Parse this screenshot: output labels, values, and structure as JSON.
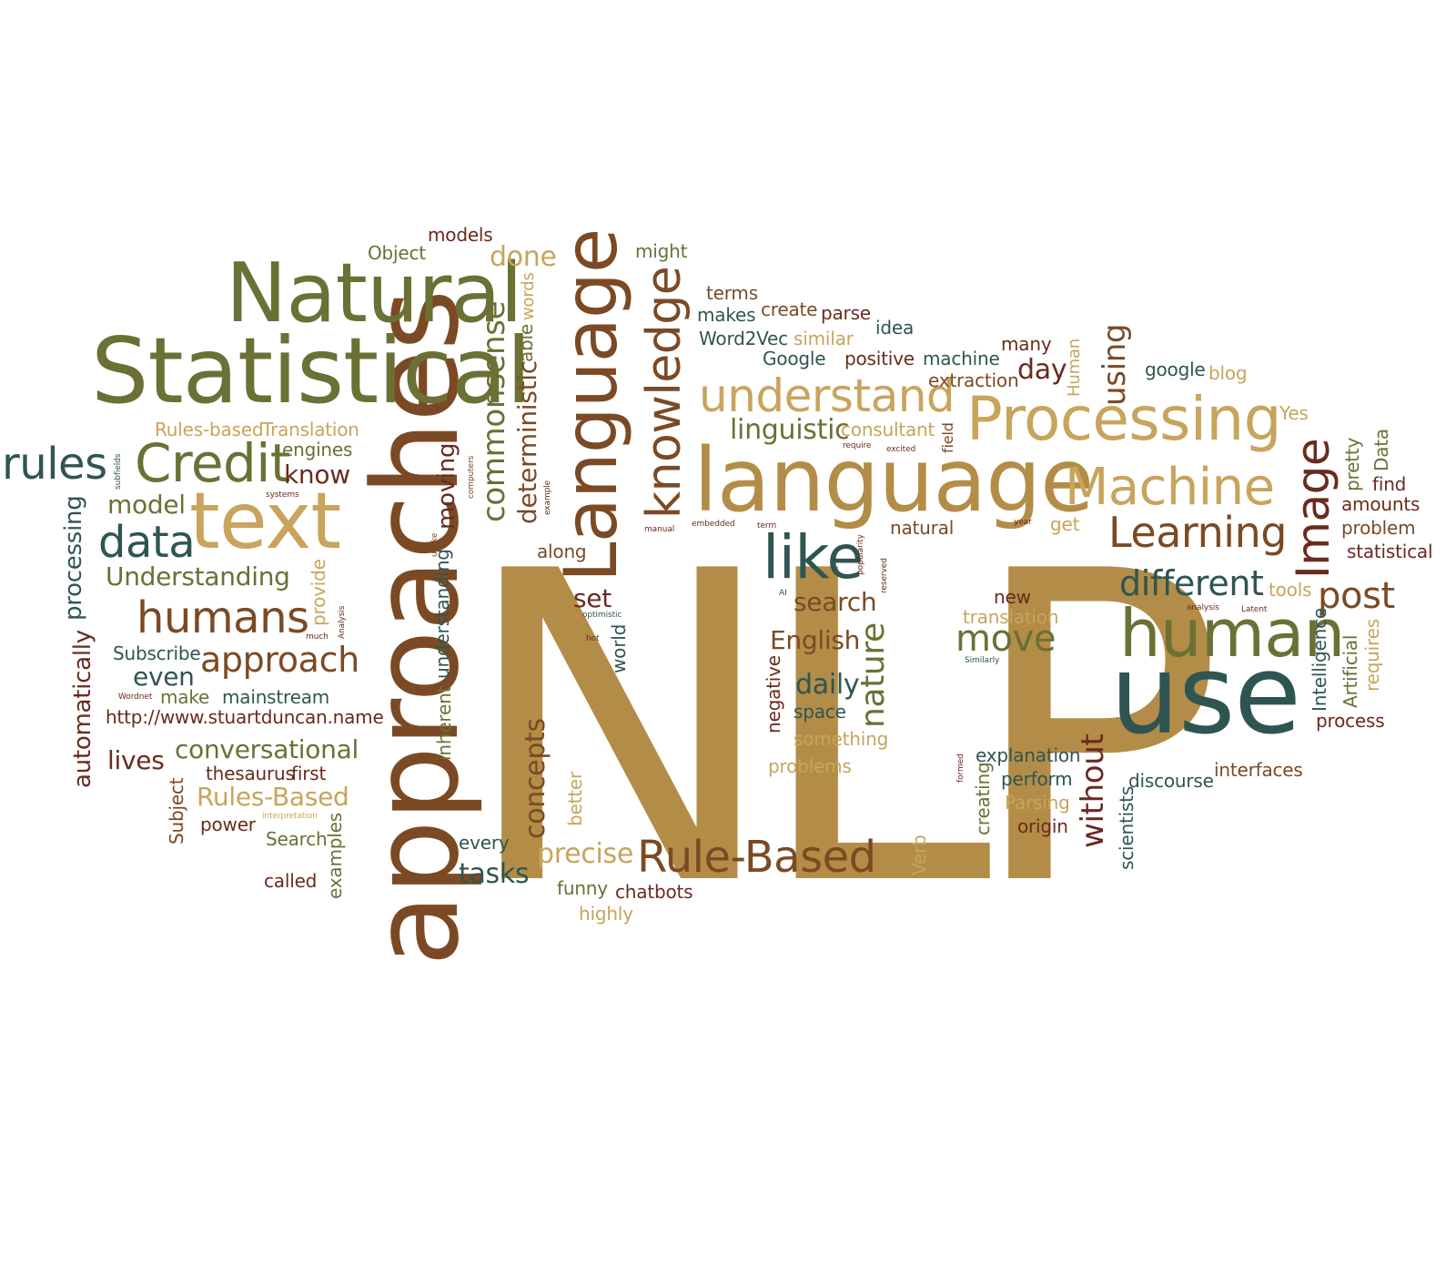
{
  "palette": {
    "gold": "#b38d47",
    "olive": "#6b7035",
    "brown": "#7b4a24",
    "maroon": "#6a2a1e",
    "teal": "#2f5552",
    "sand": "#c8a45c"
  },
  "words": [
    {
      "text": "NLP",
      "size": 470,
      "color": "gold"
    },
    {
      "text": "approaches",
      "size": 130,
      "color": "brown",
      "rotate": true
    },
    {
      "text": "Statistical",
      "size": 100,
      "color": "olive"
    },
    {
      "text": "Natural",
      "size": 90,
      "color": "olive"
    },
    {
      "text": "language",
      "size": 96,
      "color": "gold"
    },
    {
      "text": "Language",
      "size": 80,
      "color": "brown",
      "rotate": true
    },
    {
      "text": "use",
      "size": 120,
      "color": "teal"
    },
    {
      "text": "text",
      "size": 86,
      "color": "sand"
    },
    {
      "text": "human",
      "size": 72,
      "color": "olive"
    },
    {
      "text": "Processing",
      "size": 66,
      "color": "sand"
    },
    {
      "text": "like",
      "size": 66,
      "color": "teal"
    },
    {
      "text": "Credit",
      "size": 58,
      "color": "olive"
    },
    {
      "text": "knowledge",
      "size": 52,
      "color": "brown",
      "rotate": true
    },
    {
      "text": "Machine",
      "size": 56,
      "color": "sand"
    },
    {
      "text": "understand",
      "size": 50,
      "color": "sand"
    },
    {
      "text": "Image",
      "size": 50,
      "color": "maroon",
      "rotate": true
    },
    {
      "text": "humans",
      "size": 48,
      "color": "brown"
    },
    {
      "text": "Rule-Based",
      "size": 48,
      "color": "brown"
    },
    {
      "text": "rules",
      "size": 48,
      "color": "teal"
    },
    {
      "text": "data",
      "size": 48,
      "color": "teal"
    },
    {
      "text": "Learning",
      "size": 46,
      "color": "brown"
    },
    {
      "text": "move",
      "size": 40,
      "color": "olive"
    },
    {
      "text": "post",
      "size": 40,
      "color": "brown"
    },
    {
      "text": "different",
      "size": 38,
      "color": "teal"
    },
    {
      "text": "approach",
      "size": 38,
      "color": "brown"
    },
    {
      "text": "nature",
      "size": 36,
      "color": "olive",
      "rotate": true
    },
    {
      "text": "commonsense",
      "size": 34,
      "color": "olive",
      "rotate": true
    },
    {
      "text": "without",
      "size": 34,
      "color": "maroon",
      "rotate": true
    },
    {
      "text": "linguistic",
      "size": 30,
      "color": "olive"
    },
    {
      "text": "day",
      "size": 30,
      "color": "maroon"
    },
    {
      "text": "using",
      "size": 34,
      "color": "brown",
      "rotate": true
    },
    {
      "text": "done",
      "size": 30,
      "color": "sand"
    },
    {
      "text": "deterministic",
      "size": 28,
      "color": "brown",
      "rotate": true
    },
    {
      "text": "concepts",
      "size": 30,
      "color": "brown",
      "rotate": true
    },
    {
      "text": "precise",
      "size": 30,
      "color": "sand"
    },
    {
      "text": "tasks",
      "size": 30,
      "color": "teal"
    },
    {
      "text": "search",
      "size": 28,
      "color": "brown"
    },
    {
      "text": "English",
      "size": 28,
      "color": "brown"
    },
    {
      "text": "daily",
      "size": 30,
      "color": "teal"
    },
    {
      "text": "set",
      "size": 28,
      "color": "maroon"
    },
    {
      "text": "conversational",
      "size": 28,
      "color": "olive"
    },
    {
      "text": "Rules-Based",
      "size": 28,
      "color": "sand"
    },
    {
      "text": "Understanding",
      "size": 28,
      "color": "olive"
    },
    {
      "text": "model",
      "size": 28,
      "color": "olive"
    },
    {
      "text": "know",
      "size": 28,
      "color": "maroon"
    },
    {
      "text": "even",
      "size": 28,
      "color": "teal"
    },
    {
      "text": "lives",
      "size": 28,
      "color": "maroon"
    },
    {
      "text": "automatically",
      "size": 26,
      "color": "maroon",
      "rotate": true
    },
    {
      "text": "processing",
      "size": 26,
      "color": "teal",
      "rotate": true
    },
    {
      "text": "moving",
      "size": 26,
      "color": "maroon",
      "rotate": true
    },
    {
      "text": "understanding",
      "size": 20,
      "color": "teal",
      "rotate": true
    },
    {
      "text": "inherent",
      "size": 20,
      "color": "olive",
      "rotate": true
    },
    {
      "text": "provide",
      "size": 20,
      "color": "sand",
      "rotate": true
    },
    {
      "text": "world",
      "size": 20,
      "color": "teal",
      "rotate": true
    },
    {
      "text": "negative",
      "size": 20,
      "color": "maroon",
      "rotate": true
    },
    {
      "text": "creating",
      "size": 20,
      "color": "olive",
      "rotate": true
    },
    {
      "text": "scientists",
      "size": 20,
      "color": "teal",
      "rotate": true
    },
    {
      "text": "Intelligence",
      "size": 20,
      "color": "teal",
      "rotate": true
    },
    {
      "text": "Artificial",
      "size": 20,
      "color": "olive",
      "rotate": true
    },
    {
      "text": "requires",
      "size": 20,
      "color": "sand",
      "rotate": true
    },
    {
      "text": "pretty",
      "size": 20,
      "color": "olive",
      "rotate": true
    },
    {
      "text": "Data",
      "size": 20,
      "color": "olive",
      "rotate": true
    },
    {
      "text": "Human",
      "size": 18,
      "color": "sand",
      "rotate": true
    },
    {
      "text": "field",
      "size": 16,
      "color": "brown",
      "rotate": true
    },
    {
      "text": "Subject",
      "size": 20,
      "color": "brown",
      "rotate": true
    },
    {
      "text": "examples",
      "size": 20,
      "color": "olive",
      "rotate": true
    },
    {
      "text": "better",
      "size": 20,
      "color": "sand",
      "rotate": true
    },
    {
      "text": "Verb",
      "size": 20,
      "color": "sand",
      "rotate": true
    },
    {
      "text": "able",
      "size": 20,
      "color": "olive",
      "rotate": true
    },
    {
      "text": "words",
      "size": 18,
      "color": "sand",
      "rotate": true
    },
    {
      "text": "models",
      "size": 20,
      "color": "maroon"
    },
    {
      "text": "Object",
      "size": 20,
      "color": "olive"
    },
    {
      "text": "might",
      "size": 20,
      "color": "olive"
    },
    {
      "text": "terms",
      "size": 20,
      "color": "brown"
    },
    {
      "text": "create",
      "size": 20,
      "color": "brown"
    },
    {
      "text": "parse",
      "size": 20,
      "color": "maroon"
    },
    {
      "text": "makes",
      "size": 20,
      "color": "teal"
    },
    {
      "text": "idea",
      "size": 20,
      "color": "teal"
    },
    {
      "text": "Word2Vec",
      "size": 20,
      "color": "teal"
    },
    {
      "text": "similar",
      "size": 20,
      "color": "sand"
    },
    {
      "text": "many",
      "size": 20,
      "color": "maroon"
    },
    {
      "text": "Google",
      "size": 20,
      "color": "teal"
    },
    {
      "text": "positive",
      "size": 20,
      "color": "maroon"
    },
    {
      "text": "machine",
      "size": 20,
      "color": "teal"
    },
    {
      "text": "google",
      "size": 20,
      "color": "teal"
    },
    {
      "text": "blog",
      "size": 20,
      "color": "sand"
    },
    {
      "text": "extraction",
      "size": 20,
      "color": "brown"
    },
    {
      "text": "Yes",
      "size": 20,
      "color": "sand"
    },
    {
      "text": "consultant",
      "size": 20,
      "color": "sand"
    },
    {
      "text": "Rules-based",
      "size": 20,
      "color": "sand"
    },
    {
      "text": "Translation",
      "size": 20,
      "color": "sand"
    },
    {
      "text": "engines",
      "size": 20,
      "color": "olive"
    },
    {
      "text": "find",
      "size": 20,
      "color": "maroon"
    },
    {
      "text": "amounts",
      "size": 20,
      "color": "maroon"
    },
    {
      "text": "problem",
      "size": 20,
      "color": "brown"
    },
    {
      "text": "statistical",
      "size": 20,
      "color": "maroon"
    },
    {
      "text": "natural",
      "size": 20,
      "color": "brown"
    },
    {
      "text": "get",
      "size": 20,
      "color": "sand"
    },
    {
      "text": "along",
      "size": 20,
      "color": "brown"
    },
    {
      "text": "tools",
      "size": 20,
      "color": "sand"
    },
    {
      "text": "new",
      "size": 20,
      "color": "maroon"
    },
    {
      "text": "translation",
      "size": 20,
      "color": "sand"
    },
    {
      "text": "Subscribe",
      "size": 20,
      "color": "teal"
    },
    {
      "text": "make",
      "size": 20,
      "color": "olive"
    },
    {
      "text": "mainstream",
      "size": 20,
      "color": "teal"
    },
    {
      "text": "http://www.stuartduncan.name",
      "size": 20,
      "color": "maroon"
    },
    {
      "text": "space",
      "size": 20,
      "color": "teal"
    },
    {
      "text": "process",
      "size": 20,
      "color": "maroon"
    },
    {
      "text": "something",
      "size": 20,
      "color": "sand"
    },
    {
      "text": "explanation",
      "size": 20,
      "color": "teal"
    },
    {
      "text": "problems",
      "size": 20,
      "color": "sand"
    },
    {
      "text": "thesaurus",
      "size": 20,
      "color": "maroon"
    },
    {
      "text": "first",
      "size": 20,
      "color": "maroon"
    },
    {
      "text": "perform",
      "size": 20,
      "color": "teal"
    },
    {
      "text": "interfaces",
      "size": 20,
      "color": "brown"
    },
    {
      "text": "discourse",
      "size": 20,
      "color": "teal"
    },
    {
      "text": "Parsing",
      "size": 20,
      "color": "sand"
    },
    {
      "text": "power",
      "size": 20,
      "color": "maroon"
    },
    {
      "text": "origin",
      "size": 20,
      "color": "maroon"
    },
    {
      "text": "Search",
      "size": 20,
      "color": "olive"
    },
    {
      "text": "every",
      "size": 20,
      "color": "teal"
    },
    {
      "text": "called",
      "size": 20,
      "color": "maroon"
    },
    {
      "text": "funny",
      "size": 20,
      "color": "olive"
    },
    {
      "text": "chatbots",
      "size": 20,
      "color": "maroon"
    },
    {
      "text": "highly",
      "size": 20,
      "color": "sand"
    },
    {
      "text": "subfields",
      "size": 9,
      "color": "teal",
      "rotate": true
    },
    {
      "text": "systems",
      "size": 9,
      "color": "maroon"
    },
    {
      "text": "computers",
      "size": 9,
      "color": "brown",
      "rotate": true
    },
    {
      "text": "example",
      "size": 9,
      "color": "maroon",
      "rotate": true
    },
    {
      "text": "unlike",
      "size": 9,
      "color": "brown",
      "rotate": true
    },
    {
      "text": "manual",
      "size": 9,
      "color": "maroon"
    },
    {
      "text": "embedded",
      "size": 9,
      "color": "maroon"
    },
    {
      "text": "term",
      "size": 9,
      "color": "maroon"
    },
    {
      "text": "require",
      "size": 9,
      "color": "maroon"
    },
    {
      "text": "excited",
      "size": 9,
      "color": "maroon"
    },
    {
      "text": "year",
      "size": 9,
      "color": "maroon"
    },
    {
      "text": "popularity",
      "size": 9,
      "color": "maroon",
      "rotate": true
    },
    {
      "text": "reserved",
      "size": 9,
      "color": "maroon",
      "rotate": true
    },
    {
      "text": "AI",
      "size": 9,
      "color": "teal"
    },
    {
      "text": "optimistic",
      "size": 9,
      "color": "teal"
    },
    {
      "text": "hot",
      "size": 9,
      "color": "maroon"
    },
    {
      "text": "much",
      "size": 9,
      "color": "maroon"
    },
    {
      "text": "Analysis",
      "size": 9,
      "color": "maroon",
      "rotate": true
    },
    {
      "text": "Wordnet",
      "size": 9,
      "color": "maroon"
    },
    {
      "text": "analysis",
      "size": 9,
      "color": "maroon"
    },
    {
      "text": "Latent",
      "size": 9,
      "color": "maroon"
    },
    {
      "text": "Similarly",
      "size": 9,
      "color": "teal"
    },
    {
      "text": "interpretation",
      "size": 9,
      "color": "sand"
    },
    {
      "text": "formed",
      "size": 9,
      "color": "maroon",
      "rotate": true
    }
  ]
}
